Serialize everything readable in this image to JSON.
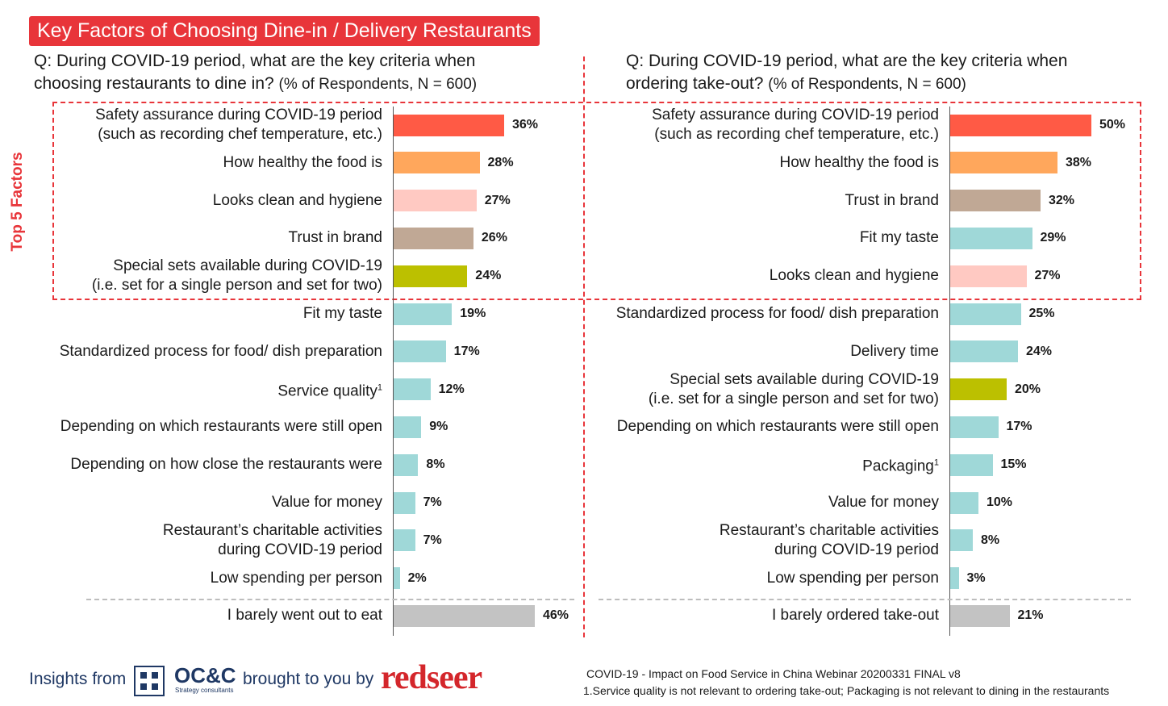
{
  "header": {
    "title": "Key Factors of Choosing Dine-in / Delivery Restaurants"
  },
  "questions": {
    "left_line1": "Q: During COVID-19 period, what are the key criteria when",
    "left_line2": "choosing restaurants to dine in?",
    "left_note": "(% of Respondents, N = 600)",
    "right_line1": "Q: During COVID-19 period, what are the key criteria when",
    "right_line2": "ordering take-out?",
    "right_note": "(% of Respondents, N = 600)"
  },
  "top5_label": "Top 5 Factors",
  "colors": {
    "title_bg": "#e8353a",
    "safety": "#ff5a45",
    "healthy": "#ffa75c",
    "clean": "#ffc9c2",
    "brand": "#c0a895",
    "special": "#bcc000",
    "other": "#9fd8d8",
    "barely": "#c3c3c3"
  },
  "chart_data": [
    {
      "type": "bar",
      "orientation": "horizontal",
      "title": "During COVID-19 period, what are the key criteria when choosing restaurants to dine in? (% of Respondents, N = 600)",
      "unit": "%",
      "xlim": [
        0,
        50
      ],
      "categories": [
        {
          "lines": [
            "Safety assurance during COVID-19 period",
            "(such as recording chef temperature, etc.)"
          ],
          "value": 36,
          "label": "36%",
          "color": "#ff5a45"
        },
        {
          "lines": [
            "How healthy the food is"
          ],
          "value": 28,
          "label": "28%",
          "color": "#ffa75c"
        },
        {
          "lines": [
            "Looks clean and hygiene"
          ],
          "value": 27,
          "label": "27%",
          "color": "#ffc9c2"
        },
        {
          "lines": [
            "Trust in brand"
          ],
          "value": 26,
          "label": "26%",
          "color": "#c0a895"
        },
        {
          "lines": [
            "Special sets available during COVID-19",
            "(i.e. set for a single person and set for two)"
          ],
          "value": 24,
          "label": "24%",
          "color": "#bcc000"
        },
        {
          "lines": [
            "Fit my taste"
          ],
          "value": 19,
          "label": "19%",
          "color": "#9fd8d8"
        },
        {
          "lines": [
            "Standardized process for food/ dish preparation"
          ],
          "value": 17,
          "label": "17%",
          "color": "#9fd8d8"
        },
        {
          "lines": [
            "Service quality"
          ],
          "sup": "1",
          "value": 12,
          "label": "12%",
          "color": "#9fd8d8"
        },
        {
          "lines": [
            "Depending on which restaurants were still open"
          ],
          "value": 9,
          "label": "9%",
          "color": "#9fd8d8"
        },
        {
          "lines": [
            "Depending on how close the restaurants were"
          ],
          "value": 8,
          "label": "8%",
          "color": "#9fd8d8"
        },
        {
          "lines": [
            "Value for money"
          ],
          "value": 7,
          "label": "7%",
          "color": "#9fd8d8"
        },
        {
          "lines": [
            "Restaurant’s charitable activities",
            "during COVID-19 period"
          ],
          "value": 7,
          "label": "7%",
          "color": "#9fd8d8"
        },
        {
          "lines": [
            "Low spending per person"
          ],
          "value": 2,
          "label": "2%",
          "color": "#9fd8d8"
        },
        {
          "lines": [
            "I barely went out to eat"
          ],
          "value": 46,
          "label": "46%",
          "color": "#c3c3c3"
        }
      ]
    },
    {
      "type": "bar",
      "orientation": "horizontal",
      "title": "During COVID-19 period, what are the key criteria when ordering take-out? (% of Respondents, N = 600)",
      "unit": "%",
      "xlim": [
        0,
        50
      ],
      "categories": [
        {
          "lines": [
            "Safety assurance during COVID-19 period",
            "(such as recording chef temperature, etc.)"
          ],
          "value": 50,
          "label": "50%",
          "color": "#ff5a45"
        },
        {
          "lines": [
            "How healthy the food is"
          ],
          "value": 38,
          "label": "38%",
          "color": "#ffa75c"
        },
        {
          "lines": [
            "Trust in brand"
          ],
          "value": 32,
          "label": "32%",
          "color": "#c0a895"
        },
        {
          "lines": [
            "Fit my taste"
          ],
          "value": 29,
          "label": "29%",
          "color": "#9fd8d8"
        },
        {
          "lines": [
            "Looks clean and hygiene"
          ],
          "value": 27,
          "label": "27%",
          "color": "#ffc9c2"
        },
        {
          "lines": [
            "Standardized process for food/ dish preparation"
          ],
          "value": 25,
          "label": "25%",
          "color": "#9fd8d8"
        },
        {
          "lines": [
            "Delivery time"
          ],
          "value": 24,
          "label": "24%",
          "color": "#9fd8d8"
        },
        {
          "lines": [
            "Special sets available during COVID-19",
            "(i.e. set for a single person and set for two)"
          ],
          "value": 20,
          "label": "20%",
          "color": "#bcc000"
        },
        {
          "lines": [
            "Depending on which restaurants were still open"
          ],
          "value": 17,
          "label": "17%",
          "color": "#9fd8d8"
        },
        {
          "lines": [
            "Packaging"
          ],
          "sup": "1",
          "value": 15,
          "label": "15%",
          "color": "#9fd8d8"
        },
        {
          "lines": [
            "Value for money"
          ],
          "value": 10,
          "label": "10%",
          "color": "#9fd8d8"
        },
        {
          "lines": [
            "Restaurant’s charitable activities",
            "during COVID-19 period"
          ],
          "value": 8,
          "label": "8%",
          "color": "#9fd8d8"
        },
        {
          "lines": [
            "Low spending per person"
          ],
          "value": 3,
          "label": "3%",
          "color": "#9fd8d8"
        },
        {
          "lines": [
            "I barely ordered take-out"
          ],
          "value": 21,
          "label": "21%",
          "color": "#c3c3c3"
        }
      ]
    }
  ],
  "footer": {
    "insights_from": "Insights from",
    "occ_name": "OC&C",
    "occ_sub": "Strategy consultants",
    "brought_by": "brought to you by",
    "redseer": "redseer",
    "source": "COVID-19 - Impact on Food Service in China Webinar 20200331 FINAL v8",
    "footnote": "1.Service quality is not relevant to ordering take-out; Packaging is not relevant to dining in the restaurants"
  }
}
